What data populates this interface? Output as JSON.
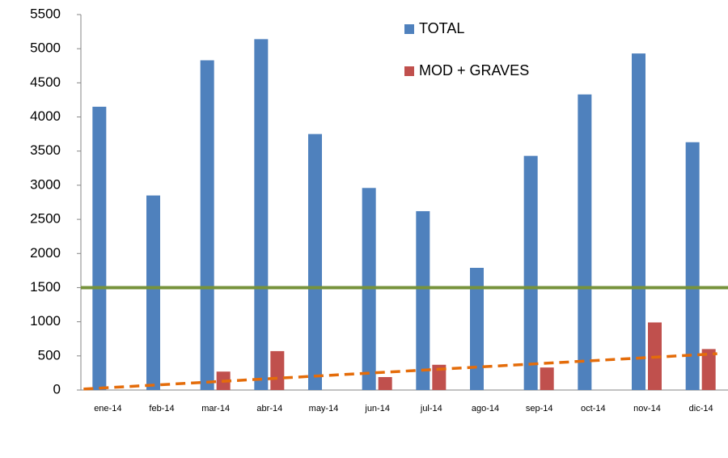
{
  "chart_data": {
    "type": "bar",
    "categories": [
      "ene-14",
      "feb-14",
      "mar-14",
      "abr-14",
      "may-14",
      "jun-14",
      "jul-14",
      "ago-14",
      "sep-14",
      "oct-14",
      "nov-14",
      "dic-14"
    ],
    "series": [
      {
        "name": "TOTAL",
        "color": "#4f81bd",
        "values": [
          4150,
          2850,
          4830,
          5140,
          3750,
          2960,
          2620,
          1790,
          3430,
          4330,
          4930,
          3630
        ]
      },
      {
        "name": "MOD + GRAVES",
        "color": "#c0504d",
        "values": [
          0,
          0,
          270,
          570,
          0,
          190,
          370,
          0,
          330,
          0,
          990,
          600
        ],
        "trendline": {
          "color": "#e46c0a"
        }
      }
    ],
    "reference_line": {
      "value": 1500,
      "color": "#77933c"
    },
    "ylim": [
      0,
      5500
    ],
    "yticks": [
      0,
      500,
      1000,
      1500,
      2000,
      2500,
      3000,
      3500,
      4000,
      4500,
      5000,
      5500
    ],
    "grid": false,
    "legend": "top"
  }
}
